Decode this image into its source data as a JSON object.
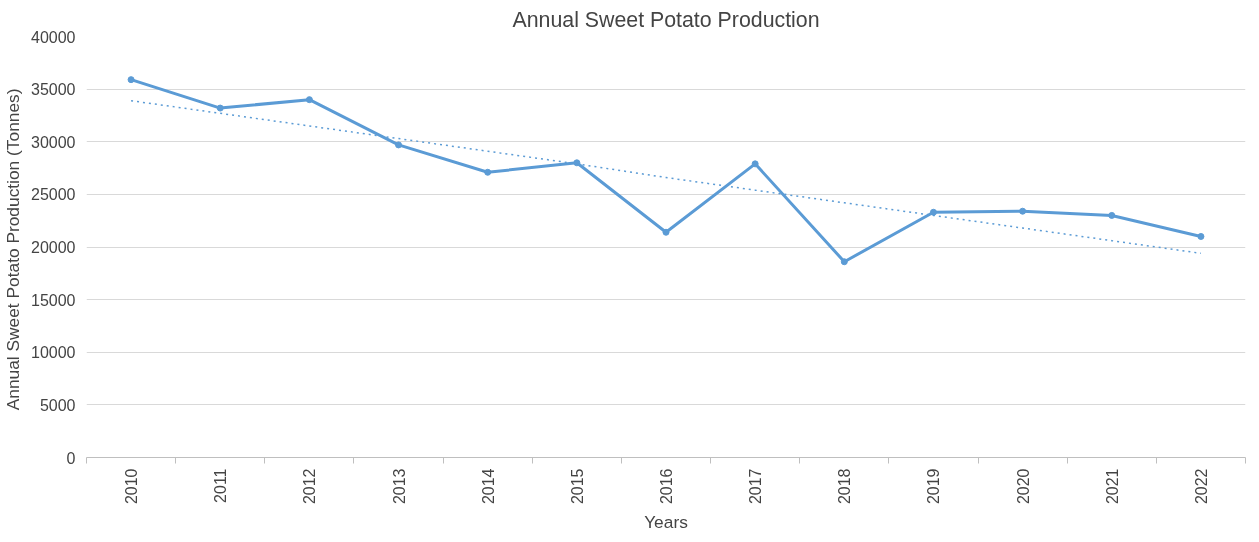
{
  "chart_data": {
    "type": "line",
    "title": "Annual Sweet Potato Production",
    "xlabel": "Years",
    "ylabel": "Annual  Sweet Potato Production (Tonnes)",
    "categories": [
      "2010",
      "2011",
      "2012",
      "2013",
      "2014",
      "2015",
      "2016",
      "2017",
      "2018",
      "2019",
      "2020",
      "2021",
      "2022"
    ],
    "series": [
      {
        "color": "#5b9bd5",
        "values": [
          35900,
          33200,
          34000,
          29700,
          27100,
          28000,
          21400,
          27900,
          18600,
          23300,
          23400,
          23000,
          21000
        ],
        "marker": "circle",
        "line_style": "solid"
      },
      {
        "type": "line",
        "color": "#5b9bd5",
        "values": [
          33900,
          32700,
          31500,
          30300,
          29100,
          27900,
          26600,
          25400,
          24200,
          23000,
          21800,
          20600,
          19400
        ],
        "marker": "none",
        "line_style": "dotted"
      }
    ],
    "ylim": [
      0,
      40000
    ],
    "yticks": [
      0,
      5000,
      10000,
      15000,
      20000,
      25000,
      30000,
      35000,
      40000
    ],
    "grid": "y"
  }
}
